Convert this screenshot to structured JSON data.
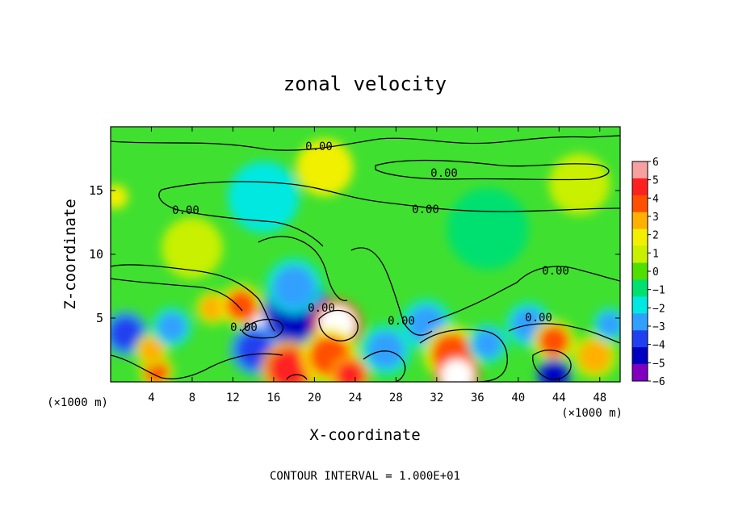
{
  "chart_data": {
    "type": "heatmap",
    "title": "zonal velocity",
    "xlabel": "X-coordinate",
    "ylabel": "Z-coordinate",
    "x_unit_left": "(×1000 m)",
    "x_unit_right": "(×1000 m)",
    "xlim": [
      0,
      50
    ],
    "ylim": [
      0,
      20
    ],
    "x_ticks": [
      "4",
      "8",
      "12",
      "16",
      "20",
      "24",
      "28",
      "32",
      "36",
      "40",
      "44",
      "48"
    ],
    "y_ticks": [
      "5",
      "10",
      "15"
    ],
    "colorbar": {
      "labels": [
        "6",
        "5",
        "4",
        "3",
        "2",
        "1",
        "0",
        "−1",
        "−2",
        "−3",
        "−4",
        "−5",
        "−6"
      ],
      "colors": [
        "#f6a0a0",
        "#ff2020",
        "#ff5000",
        "#ffb000",
        "#f0f000",
        "#c8f000",
        "#50e000",
        "#00e070",
        "#00e8e0",
        "#30a0ff",
        "#2040f0",
        "#0000c0",
        "#8000c0"
      ]
    },
    "contour_labels": [
      "0.00",
      "0.00",
      "0.00",
      "0.00",
      "0.00",
      "0.00",
      "0.00",
      "0.00",
      "0.00"
    ],
    "footer": "CONTOUR INTERVAL = 1.000E+01",
    "field_blobs": [
      {
        "x": 1.5,
        "y": 3.8,
        "r": 1.6,
        "v": -4
      },
      {
        "x": 4.5,
        "y": 0.8,
        "r": 1.2,
        "v": 4
      },
      {
        "x": 4.0,
        "y": 2.5,
        "r": 1.2,
        "v": 3
      },
      {
        "x": 6.0,
        "y": 4.3,
        "r": 1.4,
        "v": -3
      },
      {
        "x": 10.0,
        "y": 5.8,
        "r": 1.2,
        "v": 3
      },
      {
        "x": 12.8,
        "y": 6.0,
        "r": 1.5,
        "v": 4
      },
      {
        "x": 14.8,
        "y": 4.5,
        "r": 1.0,
        "v": 6
      },
      {
        "x": 15.5,
        "y": 3.2,
        "r": 1.0,
        "v": 6
      },
      {
        "x": 14.2,
        "y": 2.5,
        "r": 1.8,
        "v": -4
      },
      {
        "x": 18.3,
        "y": 5.5,
        "r": 2.4,
        "v": -5
      },
      {
        "x": 18.0,
        "y": 7.5,
        "r": 2.0,
        "v": -3
      },
      {
        "x": 17.5,
        "y": 1.0,
        "r": 2.0,
        "v": 5
      },
      {
        "x": 22.2,
        "y": 4.5,
        "r": 1.8,
        "v": 6
      },
      {
        "x": 21.5,
        "y": 2.0,
        "r": 2.0,
        "v": 4
      },
      {
        "x": 23.5,
        "y": 0.5,
        "r": 1.4,
        "v": 5
      },
      {
        "x": 27.0,
        "y": 2.5,
        "r": 1.8,
        "v": -3
      },
      {
        "x": 31.0,
        "y": 4.5,
        "r": 1.8,
        "v": -3
      },
      {
        "x": 33.5,
        "y": 2.2,
        "r": 2.0,
        "v": 4
      },
      {
        "x": 34.0,
        "y": 0.5,
        "r": 1.6,
        "v": 6
      },
      {
        "x": 37.0,
        "y": 3.0,
        "r": 1.4,
        "v": -3
      },
      {
        "x": 41.0,
        "y": 4.5,
        "r": 1.6,
        "v": -3
      },
      {
        "x": 43.5,
        "y": 3.2,
        "r": 1.5,
        "v": 4
      },
      {
        "x": 43.5,
        "y": 0.5,
        "r": 1.2,
        "v": -5
      },
      {
        "x": 47.5,
        "y": 2.0,
        "r": 1.6,
        "v": 3
      },
      {
        "x": 49.0,
        "y": 4.5,
        "r": 1.2,
        "v": -3
      },
      {
        "x": 21.0,
        "y": 16.8,
        "r": 2.8,
        "v": 2
      },
      {
        "x": 15.0,
        "y": 14.5,
        "r": 3.5,
        "v": -1.5
      },
      {
        "x": 0.5,
        "y": 14.5,
        "r": 1.2,
        "v": 2
      },
      {
        "x": 37.0,
        "y": 12.0,
        "r": 4.0,
        "v": -0.8
      },
      {
        "x": 8.0,
        "y": 10.5,
        "r": 3.0,
        "v": 0.8
      },
      {
        "x": 46.0,
        "y": 15.5,
        "r": 3.0,
        "v": 1
      }
    ]
  }
}
